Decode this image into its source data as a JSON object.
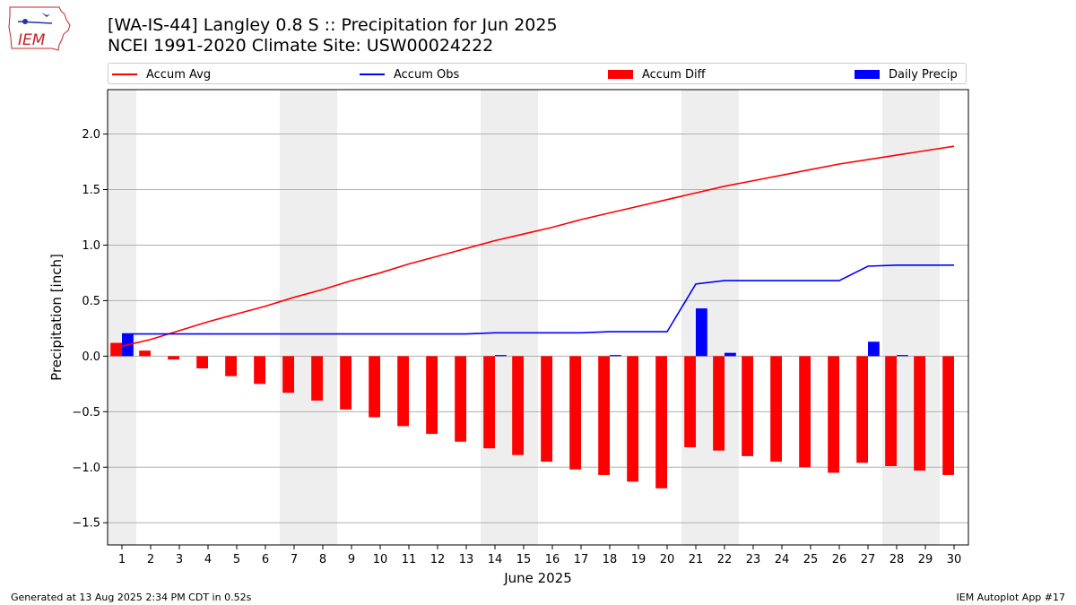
{
  "logo": {
    "text": "IEM"
  },
  "title_line1": "[WA-IS-44] Langley 0.8 S :: Precipitation for Jun 2025",
  "title_line2": "NCEI 1991-2020 Climate Site: USW00024222",
  "footer_left": "Generated at 13 Aug 2025 2:34 PM CDT in 0.52s",
  "footer_right": "IEM Autoplot App #17",
  "colors": {
    "accum_avg": "#ff0000",
    "accum_obs": "#0000ff",
    "accum_diff": "#ff0000",
    "daily_precip": "#0000ff",
    "weekend_shade": "#eeeeee",
    "grid": "#b0b0b0"
  },
  "chart_data": {
    "type": "bar",
    "xlabel": "June 2025",
    "ylabel": "Precipitation [inch]",
    "x": [
      1,
      2,
      3,
      4,
      5,
      6,
      7,
      8,
      9,
      10,
      11,
      12,
      13,
      14,
      15,
      16,
      17,
      18,
      19,
      20,
      21,
      22,
      23,
      24,
      25,
      26,
      27,
      28,
      29,
      30
    ],
    "xlim": [
      0.5,
      30.5
    ],
    "ylim": [
      -1.7,
      2.4
    ],
    "yticks": [
      -1.5,
      -1.0,
      -0.5,
      0.0,
      0.5,
      1.0,
      1.5,
      2.0
    ],
    "ytick_labels": [
      "−1.5",
      "−1.0",
      "−0.5",
      "0.0",
      "0.5",
      "1.0",
      "1.5",
      "2.0"
    ],
    "grid": "horizontal",
    "legend": "top",
    "shaded_days": [
      1,
      7,
      8,
      14,
      15,
      21,
      22,
      28,
      29
    ],
    "series": [
      {
        "name": "Accum Avg",
        "kind": "line",
        "values": [
          0.09,
          0.15,
          0.23,
          0.31,
          0.38,
          0.45,
          0.53,
          0.6,
          0.68,
          0.75,
          0.83,
          0.9,
          0.97,
          1.04,
          1.1,
          1.16,
          1.23,
          1.29,
          1.35,
          1.41,
          1.47,
          1.53,
          1.58,
          1.63,
          1.68,
          1.73,
          1.77,
          1.81,
          1.85,
          1.89
        ]
      },
      {
        "name": "Accum Obs",
        "kind": "line",
        "values": [
          0.2,
          0.2,
          0.2,
          0.2,
          0.2,
          0.2,
          0.2,
          0.2,
          0.2,
          0.2,
          0.2,
          0.2,
          0.2,
          0.21,
          0.21,
          0.21,
          0.21,
          0.22,
          0.22,
          0.22,
          0.65,
          0.68,
          0.68,
          0.68,
          0.68,
          0.68,
          0.81,
          0.82,
          0.82,
          0.82
        ]
      },
      {
        "name": "Accum Diff",
        "kind": "bar",
        "values": [
          0.12,
          0.05,
          -0.03,
          -0.11,
          -0.18,
          -0.25,
          -0.33,
          -0.4,
          -0.48,
          -0.55,
          -0.63,
          -0.7,
          -0.77,
          -0.83,
          -0.89,
          -0.95,
          -1.02,
          -1.07,
          -1.13,
          -1.19,
          -0.82,
          -0.85,
          -0.9,
          -0.95,
          -1.0,
          -1.05,
          -0.96,
          -0.99,
          -1.03,
          -1.07
        ]
      },
      {
        "name": "Daily Precip",
        "kind": "bar",
        "values": [
          0.2,
          0.0,
          0.0,
          0.0,
          0.0,
          0.0,
          0.0,
          0.0,
          0.0,
          0.0,
          0.0,
          0.0,
          0.0,
          0.01,
          0.0,
          0.0,
          0.0,
          0.01,
          0.0,
          0.0,
          0.43,
          0.03,
          0.0,
          0.0,
          0.0,
          0.0,
          0.13,
          0.01,
          0.0,
          0.0
        ]
      }
    ]
  }
}
